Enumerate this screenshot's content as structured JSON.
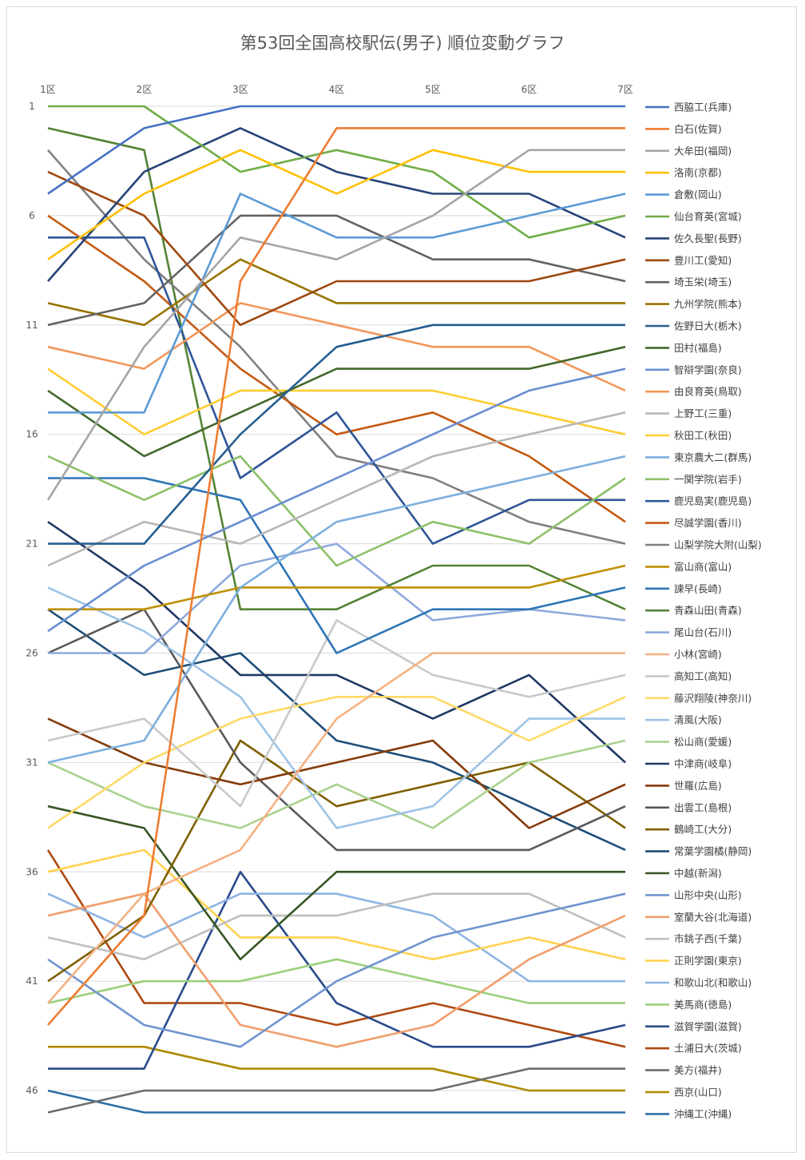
{
  "chart_data": {
    "type": "line",
    "title": "第53回全国高校駅伝(男子) 順位変動グラフ",
    "xlabel": "",
    "ylabel": "",
    "categories": [
      "1区",
      "2区",
      "3区",
      "4区",
      "5区",
      "6区",
      "7区"
    ],
    "y_ticks": [
      1,
      6,
      11,
      16,
      21,
      26,
      31,
      36,
      41,
      46
    ],
    "ylim": [
      1,
      47
    ],
    "y_axis_reversed": true,
    "grid": true,
    "legend_position": "right",
    "series": [
      {
        "name": "西脇工(兵庫)",
        "color": "#4472C4",
        "values": [
          5,
          2,
          1,
          1,
          1,
          1,
          1
        ]
      },
      {
        "name": "白石(佐賀)",
        "color": "#ED7D31",
        "values": [
          43,
          38,
          9,
          2,
          2,
          2,
          2
        ]
      },
      {
        "name": "大牟田(福岡)",
        "color": "#A5A5A5",
        "values": [
          19,
          12,
          7,
          8,
          6,
          3,
          3
        ]
      },
      {
        "name": "洛南(京都)",
        "color": "#FFC000",
        "values": [
          8,
          5,
          3,
          5,
          3,
          4,
          4
        ]
      },
      {
        "name": "倉敷(岡山)",
        "color": "#5B9BD5",
        "values": [
          15,
          15,
          5,
          7,
          7,
          6,
          5
        ]
      },
      {
        "name": "仙台育英(宮城)",
        "color": "#70AD47",
        "values": [
          1,
          1,
          4,
          3,
          4,
          7,
          6
        ]
      },
      {
        "name": "佐久長聖(長野)",
        "color": "#264478",
        "values": [
          9,
          4,
          2,
          4,
          5,
          5,
          7
        ]
      },
      {
        "name": "豊川工(愛知)",
        "color": "#9E480E",
        "values": [
          4,
          6,
          11,
          9,
          9,
          9,
          8
        ]
      },
      {
        "name": "埼玉栄(埼玉)",
        "color": "#636363",
        "values": [
          11,
          10,
          6,
          6,
          8,
          8,
          9
        ]
      },
      {
        "name": "九州学院(熊本)",
        "color": "#997300",
        "values": [
          10,
          11,
          8,
          10,
          10,
          10,
          10
        ]
      },
      {
        "name": "佐野日大(栃木)",
        "color": "#255E91",
        "values": [
          21,
          21,
          16,
          12,
          11,
          11,
          11
        ]
      },
      {
        "name": "田村(福島)",
        "color": "#43682B",
        "values": [
          14,
          17,
          15,
          13,
          13,
          13,
          12
        ]
      },
      {
        "name": "智辯学園(奈良)",
        "color": "#698ED0",
        "values": [
          25,
          22,
          20,
          18,
          16,
          14,
          13
        ]
      },
      {
        "name": "由良育英(鳥取)",
        "color": "#F1975A",
        "values": [
          12,
          13,
          10,
          11,
          12,
          12,
          14
        ]
      },
      {
        "name": "上野工(三重)",
        "color": "#B7B7B7",
        "values": [
          22,
          20,
          21,
          19,
          17,
          16,
          15
        ]
      },
      {
        "name": "秋田工(秋田)",
        "color": "#FFCD33",
        "values": [
          13,
          16,
          14,
          14,
          14,
          15,
          16
        ]
      },
      {
        "name": "東京農大二(群馬)",
        "color": "#7CAFDD",
        "values": [
          31,
          30,
          23,
          20,
          19,
          18,
          17
        ]
      },
      {
        "name": "一関学院(岩手)",
        "color": "#8CC168",
        "values": [
          17,
          19,
          17,
          22,
          20,
          21,
          18
        ]
      },
      {
        "name": "鹿児島実(鹿児島)",
        "color": "#2F5597",
        "values": [
          7,
          7,
          18,
          15,
          21,
          19,
          19
        ]
      },
      {
        "name": "尽誠学園(香川)",
        "color": "#C55A11",
        "values": [
          6,
          9,
          13,
          16,
          15,
          17,
          20
        ]
      },
      {
        "name": "山梨学院大附(山梨)",
        "color": "#7F7F7F",
        "values": [
          3,
          8,
          12,
          17,
          18,
          20,
          21
        ]
      },
      {
        "name": "富山商(富山)",
        "color": "#BF9000",
        "values": [
          24,
          24,
          23,
          23,
          23,
          23,
          22
        ]
      },
      {
        "name": "諫早(長崎)",
        "color": "#2E75B6",
        "values": [
          18,
          18,
          19,
          26,
          24,
          24,
          23
        ]
      },
      {
        "name": "青森山田(青森)",
        "color": "#548235",
        "values": [
          2,
          3,
          24,
          24,
          22,
          22,
          24
        ]
      },
      {
        "name": "尾山台(石川)",
        "color": "#8FAADC",
        "values": [
          26,
          26,
          22,
          21,
          24.5,
          24,
          24.5
        ]
      },
      {
        "name": "小林(宮崎)",
        "color": "#F4B183",
        "values": [
          42,
          37,
          35,
          29,
          26,
          26,
          26
        ]
      },
      {
        "name": "高知工(高知)",
        "color": "#C9C9C9",
        "values": [
          30,
          29,
          33,
          24.5,
          27,
          28,
          27
        ]
      },
      {
        "name": "藤沢翔陵(神奈川)",
        "color": "#FFD966",
        "values": [
          34,
          31,
          29,
          28,
          28,
          30,
          28
        ]
      },
      {
        "name": "清風(大阪)",
        "color": "#9DC3E6",
        "values": [
          23,
          25,
          28,
          34,
          33,
          29,
          29
        ]
      },
      {
        "name": "松山商(愛媛)",
        "color": "#A9D18E",
        "values": [
          31,
          33,
          34,
          32,
          34,
          31,
          30
        ]
      },
      {
        "name": "中津商(岐阜)",
        "color": "#203864",
        "values": [
          20,
          23,
          27,
          27,
          29,
          27,
          31
        ]
      },
      {
        "name": "世羅(広島)",
        "color": "#843C0C",
        "values": [
          29,
          31,
          32,
          31,
          30,
          34,
          32
        ]
      },
      {
        "name": "出雲工(島根)",
        "color": "#595959",
        "values": [
          26,
          24,
          31,
          35,
          35,
          35,
          33
        ]
      },
      {
        "name": "鶴崎工(大分)",
        "color": "#7F6000",
        "values": [
          41,
          38,
          30,
          33,
          32,
          31,
          34
        ]
      },
      {
        "name": "常葉学園橘(静岡)",
        "color": "#1F4E79",
        "values": [
          24,
          27,
          26,
          30,
          31,
          33,
          35
        ]
      },
      {
        "name": "中越(新潟)",
        "color": "#375623",
        "values": [
          33,
          34,
          40,
          36,
          36,
          36,
          36
        ]
      },
      {
        "name": "山形中央(山形)",
        "color": "#7094D0",
        "values": [
          40,
          43,
          44,
          41,
          39,
          38,
          37
        ]
      },
      {
        "name": "室蘭大谷(北海道)",
        "color": "#F19E6C",
        "values": [
          38,
          37,
          43,
          44,
          43,
          40,
          38
        ]
      },
      {
        "name": "市銚子西(千葉)",
        "color": "#BFBFBF",
        "values": [
          39,
          40,
          38,
          38,
          37,
          37,
          39
        ]
      },
      {
        "name": "正則学園(東京)",
        "color": "#FFD24F",
        "values": [
          36,
          35,
          39,
          39,
          40,
          39,
          40
        ]
      },
      {
        "name": "和歌山北(和歌山)",
        "color": "#8EB4E3",
        "values": [
          37,
          39,
          37,
          37,
          38,
          41,
          41
        ]
      },
      {
        "name": "美馬商(徳島)",
        "color": "#9BD07E",
        "values": [
          42,
          41,
          41,
          40,
          41,
          42,
          42
        ]
      },
      {
        "name": "滋賀学園(滋賀)",
        "color": "#2A4A8B",
        "values": [
          45,
          45,
          36,
          42,
          44,
          44,
          43
        ]
      },
      {
        "name": "土浦日大(茨城)",
        "color": "#B04A12",
        "values": [
          35,
          42,
          42,
          43,
          42,
          43,
          44
        ]
      },
      {
        "name": "美方(福井)",
        "color": "#6E6E6E",
        "values": [
          47,
          46,
          46,
          46,
          46,
          45,
          45
        ]
      },
      {
        "name": "西京(山口)",
        "color": "#AE8A00",
        "values": [
          44,
          44,
          45,
          45,
          45,
          46,
          46
        ]
      },
      {
        "name": "沖縄工(沖縄)",
        "color": "#2E6FA8",
        "values": [
          46,
          47,
          47,
          47,
          47,
          47,
          47
        ]
      }
    ]
  }
}
